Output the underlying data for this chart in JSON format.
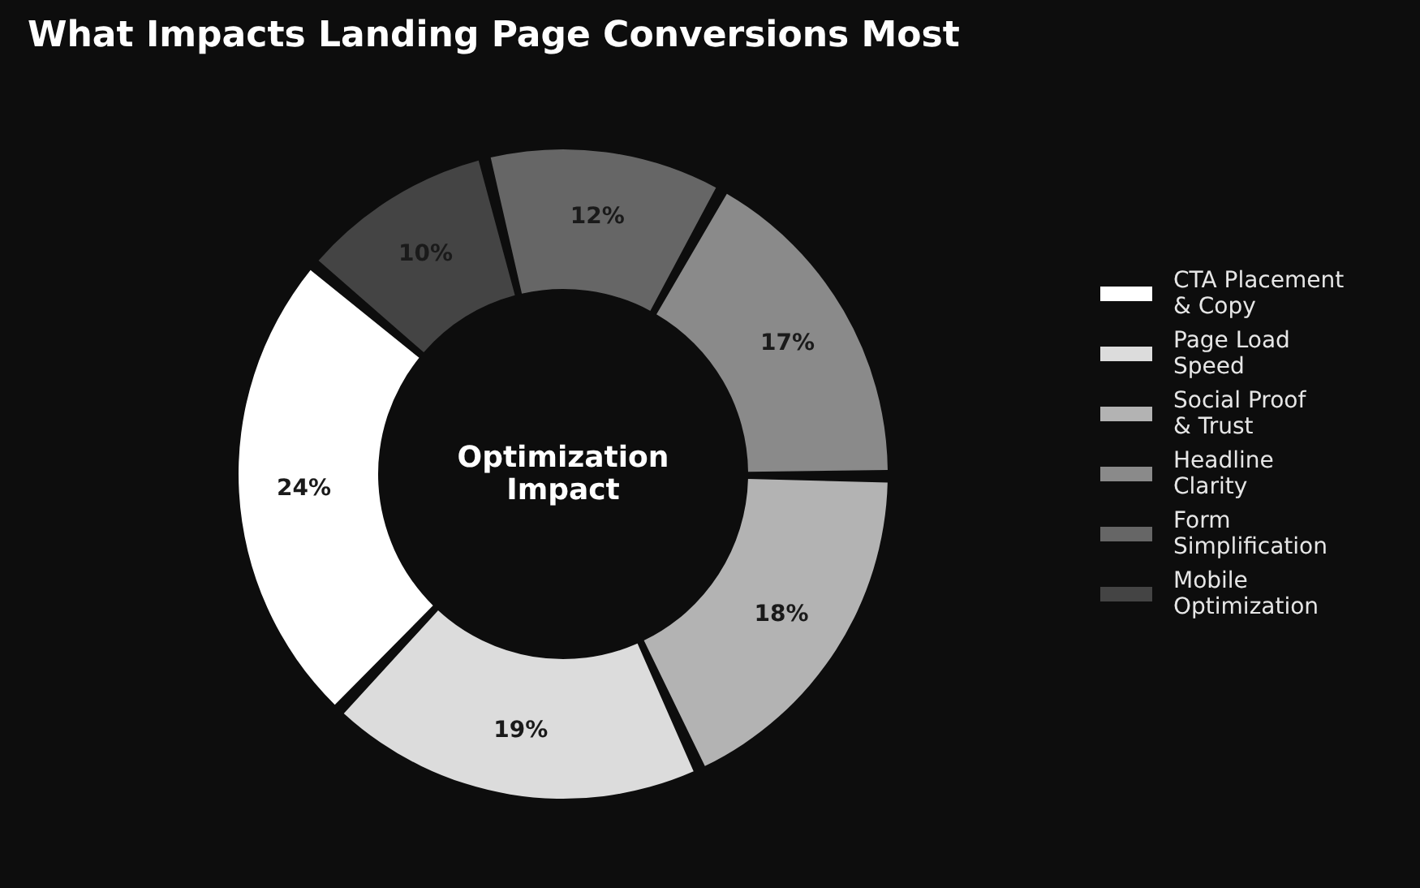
{
  "chart_data": {
    "type": "donut",
    "title": "What Impacts Landing Page Conversions Most",
    "categories": [
      "CTA Placement & Copy",
      "Page Load Speed",
      "Social Proof & Trust",
      "Headline Clarity",
      "Form Simplification",
      "Mobile Optimization"
    ],
    "values": [
      24,
      19,
      18,
      17,
      12,
      10
    ],
    "value_labels": [
      "24%",
      "19%",
      "18%",
      "17%",
      "12%",
      "10%"
    ],
    "colors": [
      "#ffffff",
      "#dcdcdc",
      "#b3b3b3",
      "#8a8a8a",
      "#666666",
      "#444444"
    ],
    "annotations": [
      "Optimization Impact"
    ],
    "legend": "right"
  }
}
